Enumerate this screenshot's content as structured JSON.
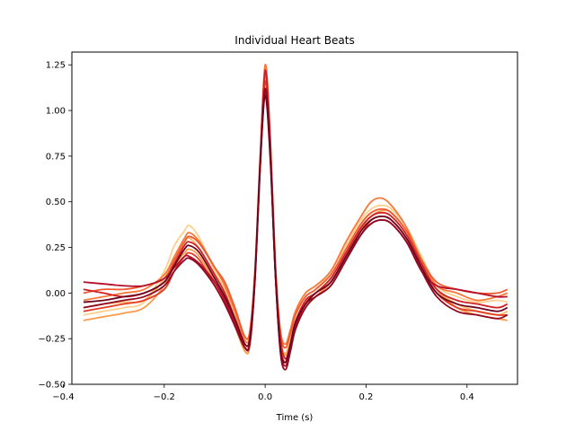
{
  "chart_data": {
    "type": "line",
    "title": "Individual Heart Beats",
    "xlabel": "Time (s)",
    "ylabel": "",
    "xlim": [
      -0.383,
      0.5
    ],
    "ylim": [
      -0.5,
      1.32
    ],
    "xticks": [
      -0.4,
      -0.2,
      0.0,
      0.2,
      0.4
    ],
    "xtick_labels": [
      "−0.4",
      "−0.2",
      "0.0",
      "0.2",
      "0.4"
    ],
    "yticks": [
      -0.5,
      -0.25,
      0.0,
      0.25,
      0.5,
      0.75,
      1.0,
      1.25
    ],
    "ytick_labels": [
      "−0.50",
      "−0.25",
      "0.00",
      "0.25",
      "0.50",
      "0.75",
      "1.00",
      "1.25"
    ],
    "grid": false,
    "legend": "none",
    "x": [
      -0.36,
      -0.32,
      -0.28,
      -0.24,
      -0.2,
      -0.18,
      -0.16,
      -0.15,
      -0.13,
      -0.1,
      -0.08,
      -0.06,
      -0.04,
      -0.03,
      -0.02,
      -0.01,
      0.0,
      0.01,
      0.02,
      0.03,
      0.04,
      0.05,
      0.06,
      0.08,
      0.1,
      0.13,
      0.16,
      0.19,
      0.21,
      0.23,
      0.25,
      0.28,
      0.31,
      0.34,
      0.38,
      0.42,
      0.46,
      0.48
    ],
    "series": [
      {
        "color": "#fdd08c",
        "values": [
          -0.12,
          -0.1,
          -0.08,
          -0.05,
          0.12,
          0.26,
          0.34,
          0.37,
          0.3,
          0.12,
          0.02,
          -0.12,
          -0.3,
          -0.26,
          0.1,
          0.7,
          1.2,
          0.82,
          0.15,
          -0.22,
          -0.3,
          -0.22,
          -0.12,
          -0.02,
          0.02,
          0.12,
          0.26,
          0.4,
          0.46,
          0.48,
          0.46,
          0.36,
          0.2,
          0.04,
          -0.02,
          -0.05,
          -0.04,
          -0.05
        ]
      },
      {
        "color": "#fcb863",
        "values": [
          -0.08,
          -0.06,
          -0.05,
          -0.04,
          0.08,
          0.2,
          0.28,
          0.3,
          0.24,
          0.1,
          0.0,
          -0.14,
          -0.28,
          -0.25,
          0.1,
          0.7,
          1.18,
          0.8,
          0.14,
          -0.25,
          -0.33,
          -0.25,
          -0.15,
          -0.05,
          0.0,
          0.08,
          0.22,
          0.36,
          0.42,
          0.44,
          0.42,
          0.32,
          0.16,
          0.02,
          -0.06,
          -0.1,
          -0.12,
          -0.1
        ]
      },
      {
        "color": "#fb9a4a",
        "values": [
          -0.15,
          -0.13,
          -0.11,
          -0.08,
          0.04,
          0.15,
          0.22,
          0.24,
          0.2,
          0.06,
          -0.04,
          -0.18,
          -0.32,
          -0.28,
          0.08,
          0.68,
          1.22,
          0.84,
          0.14,
          -0.26,
          -0.34,
          -0.28,
          -0.18,
          -0.08,
          -0.02,
          0.06,
          0.2,
          0.35,
          0.42,
          0.45,
          0.44,
          0.34,
          0.18,
          0.02,
          -0.08,
          -0.12,
          -0.14,
          -0.15
        ]
      },
      {
        "color": "#f8793a",
        "values": [
          -0.04,
          -0.02,
          0.0,
          0.02,
          0.1,
          0.2,
          0.3,
          0.33,
          0.28,
          0.14,
          0.04,
          -0.1,
          -0.26,
          -0.22,
          0.12,
          0.72,
          1.25,
          0.86,
          0.18,
          -0.2,
          -0.28,
          -0.2,
          -0.1,
          0.0,
          0.04,
          0.12,
          0.28,
          0.42,
          0.5,
          0.52,
          0.48,
          0.36,
          0.18,
          0.04,
          0.0,
          -0.04,
          -0.02,
          0.0
        ]
      },
      {
        "color": "#ef5a2e",
        "values": [
          0.0,
          0.02,
          0.02,
          0.04,
          0.08,
          0.18,
          0.28,
          0.31,
          0.27,
          0.14,
          0.06,
          -0.08,
          -0.24,
          -0.2,
          0.14,
          0.74,
          1.2,
          0.82,
          0.14,
          -0.22,
          -0.3,
          -0.22,
          -0.12,
          -0.02,
          0.02,
          0.1,
          0.24,
          0.38,
          0.44,
          0.46,
          0.44,
          0.34,
          0.18,
          0.06,
          0.02,
          0.0,
          0.0,
          0.02
        ]
      },
      {
        "color": "#e33d26",
        "values": [
          -0.1,
          -0.08,
          -0.06,
          -0.04,
          0.02,
          0.12,
          0.2,
          0.22,
          0.18,
          0.04,
          -0.06,
          -0.18,
          -0.3,
          -0.26,
          0.1,
          0.7,
          1.16,
          0.78,
          0.12,
          -0.28,
          -0.38,
          -0.3,
          -0.18,
          -0.06,
          0.0,
          0.06,
          0.2,
          0.32,
          0.4,
          0.42,
          0.4,
          0.3,
          0.14,
          0.0,
          -0.08,
          -0.1,
          -0.12,
          -0.12
        ]
      },
      {
        "color": "#cf2025",
        "values": [
          0.02,
          0.0,
          -0.02,
          0.0,
          0.06,
          0.16,
          0.26,
          0.28,
          0.24,
          0.1,
          0.0,
          -0.14,
          -0.3,
          -0.26,
          0.1,
          0.72,
          1.22,
          0.84,
          0.16,
          -0.24,
          -0.36,
          -0.28,
          -0.16,
          -0.04,
          0.0,
          0.08,
          0.22,
          0.36,
          0.42,
          0.44,
          0.42,
          0.32,
          0.16,
          0.02,
          -0.04,
          -0.06,
          -0.08,
          -0.06
        ]
      },
      {
        "color": "#b40e28",
        "values": [
          0.06,
          0.05,
          0.04,
          0.04,
          0.08,
          0.14,
          0.2,
          0.2,
          0.16,
          0.06,
          -0.04,
          -0.16,
          -0.3,
          -0.27,
          0.08,
          0.68,
          1.1,
          0.76,
          0.12,
          -0.3,
          -0.4,
          -0.3,
          -0.18,
          -0.06,
          -0.02,
          0.04,
          0.18,
          0.32,
          0.38,
          0.4,
          0.38,
          0.28,
          0.12,
          0.04,
          0.02,
          0.0,
          -0.02,
          -0.02
        ]
      },
      {
        "color": "#8f0a22",
        "values": [
          -0.08,
          -0.06,
          -0.04,
          -0.02,
          0.04,
          0.12,
          0.18,
          0.19,
          0.15,
          0.04,
          -0.06,
          -0.18,
          -0.3,
          -0.27,
          0.09,
          0.7,
          1.12,
          0.78,
          0.12,
          -0.32,
          -0.42,
          -0.32,
          -0.2,
          -0.08,
          -0.02,
          0.04,
          0.18,
          0.32,
          0.38,
          0.4,
          0.38,
          0.28,
          0.12,
          -0.02,
          -0.1,
          -0.12,
          -0.14,
          -0.12
        ]
      },
      {
        "color": "#6e0520",
        "values": [
          -0.05,
          -0.04,
          -0.02,
          0.0,
          0.06,
          0.15,
          0.24,
          0.26,
          0.22,
          0.08,
          -0.02,
          -0.14,
          -0.28,
          -0.24,
          0.1,
          0.7,
          1.08,
          0.74,
          0.12,
          -0.3,
          -0.38,
          -0.28,
          -0.16,
          -0.06,
          0.0,
          0.06,
          0.2,
          0.34,
          0.4,
          0.42,
          0.4,
          0.3,
          0.14,
          0.0,
          -0.06,
          -0.08,
          -0.1,
          -0.08
        ]
      }
    ]
  }
}
